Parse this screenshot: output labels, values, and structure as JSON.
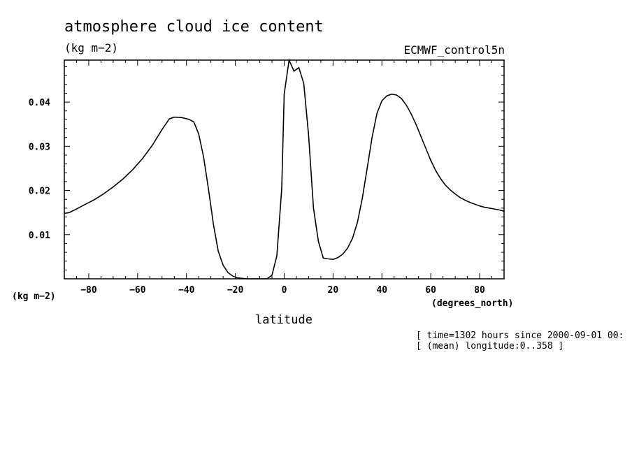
{
  "chart_data": {
    "type": "line",
    "title": "atmosphere cloud ice content",
    "title_units": "(kg m−2)",
    "dataset_label": "ECMWF_control5n",
    "ylabel": "(kg m−2)",
    "xlabel": "latitude",
    "xunits": "(degrees_north)",
    "footnote_line1": "[ time=1302 hours since 2000-09-01 00:",
    "footnote_line2": "[ (mean) longitude:0..358 ]",
    "xlim": [
      -90,
      90
    ],
    "ylim": [
      0,
      0.0495
    ],
    "xticks": [
      -80,
      -60,
      -40,
      -20,
      0,
      20,
      40,
      60,
      80
    ],
    "yticks": [
      0.01,
      0.02,
      0.03,
      0.04
    ],
    "xtick_labels": [
      "−80",
      "−60",
      "−40",
      "−20",
      "0",
      "20",
      "40",
      "60",
      "80"
    ],
    "ytick_labels": [
      "0.01",
      "0.02",
      "0.03",
      "0.04"
    ],
    "grid": false,
    "line_color": "#000000",
    "series": [
      {
        "x": [
          -90,
          -88,
          -85,
          -82,
          -78,
          -74,
          -70,
          -66,
          -62,
          -58,
          -54,
          -50,
          -47,
          -45,
          -42,
          -39,
          -37,
          -35,
          -33,
          -31,
          -29,
          -27,
          -25,
          -23,
          -21,
          -19,
          -17,
          -15,
          -13,
          -11,
          -9,
          -7,
          -5,
          -3,
          -1,
          0,
          2,
          4,
          6,
          8,
          10,
          12,
          14,
          16,
          18,
          20,
          22,
          24,
          26,
          28,
          30,
          32,
          34,
          36,
          38,
          40,
          42,
          44,
          46,
          48,
          50,
          52,
          54,
          56,
          58,
          60,
          62,
          64,
          66,
          68,
          70,
          72,
          74,
          76,
          78,
          80,
          82,
          84,
          86,
          88,
          90
        ],
        "values": [
          0.0148,
          0.015,
          0.0158,
          0.0167,
          0.0178,
          0.0192,
          0.0208,
          0.0226,
          0.0247,
          0.0272,
          0.0302,
          0.0338,
          0.0362,
          0.0366,
          0.0365,
          0.0361,
          0.0355,
          0.0328,
          0.0276,
          0.0203,
          0.0124,
          0.0063,
          0.0031,
          0.0014,
          0.0006,
          0.0002,
          0.0001,
          0.0,
          0.0,
          0.0,
          0.0,
          0.0,
          0.0008,
          0.0052,
          0.0205,
          0.0418,
          0.0495,
          0.047,
          0.0478,
          0.0442,
          0.0325,
          0.016,
          0.0085,
          0.0047,
          0.0045,
          0.0044,
          0.0048,
          0.0056,
          0.007,
          0.0092,
          0.0128,
          0.0183,
          0.0251,
          0.0321,
          0.0375,
          0.0403,
          0.0414,
          0.0418,
          0.0416,
          0.0408,
          0.0393,
          0.0373,
          0.0349,
          0.0322,
          0.0295,
          0.0268,
          0.0245,
          0.0227,
          0.0212,
          0.0201,
          0.0192,
          0.0184,
          0.0178,
          0.0173,
          0.0169,
          0.0165,
          0.0162,
          0.016,
          0.0158,
          0.0156,
          0.0153
        ]
      }
    ]
  }
}
